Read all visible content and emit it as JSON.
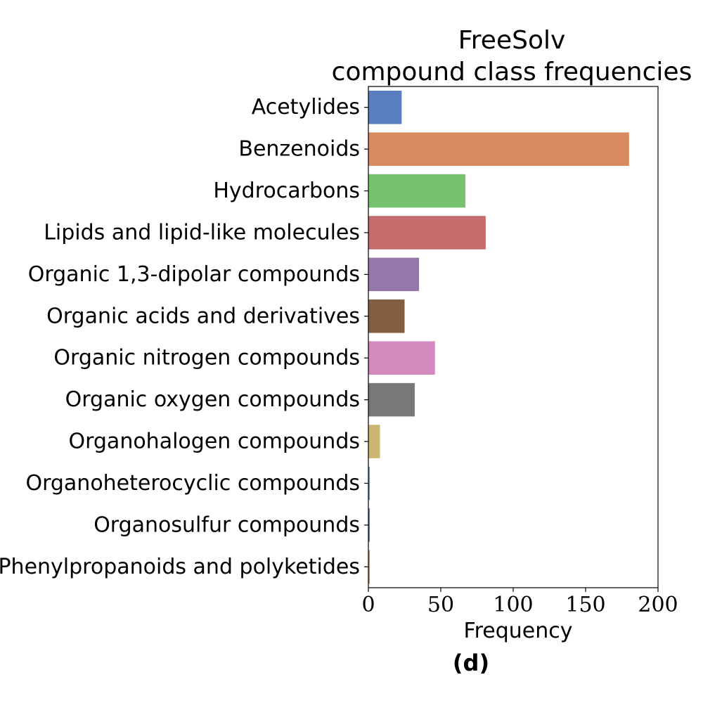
{
  "chart_data": {
    "type": "bar",
    "orientation": "horizontal",
    "title_lines": [
      "FreeSolv",
      "compound class frequencies"
    ],
    "xlabel": "Frequency",
    "ylabel": "",
    "xlim": [
      0,
      200
    ],
    "xticks": [
      0,
      50,
      100,
      150,
      200
    ],
    "grid": false,
    "categories": [
      "Acetylides",
      "Benzenoids",
      "Hydrocarbons",
      "Lipids and lipid-like molecules",
      "Organic 1,3-dipolar compounds",
      "Organic acids and derivatives",
      "Organic nitrogen compounds",
      "Organic oxygen compounds",
      "Organohalogen compounds",
      "Organoheterocyclic compounds",
      "Organosulfur compounds",
      "Phenylpropanoids and polyketides"
    ],
    "values": [
      23,
      180,
      67,
      81,
      35,
      25,
      46,
      32,
      8,
      1,
      1,
      1
    ],
    "colors": [
      "#5b7ec2",
      "#d98b5f",
      "#76c26d",
      "#c46b6b",
      "#9577ae",
      "#845e42",
      "#d38abe",
      "#787878",
      "#cdb672",
      "#4fa3c7",
      "#5b7ec2",
      "#d98b5f"
    ]
  },
  "panel_label": "(d)"
}
